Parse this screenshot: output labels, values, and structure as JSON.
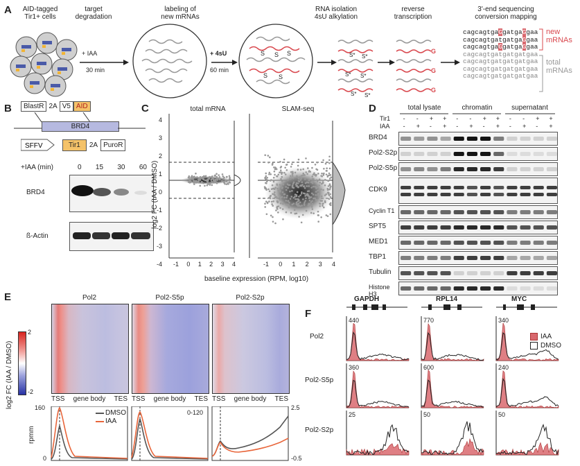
{
  "panels": {
    "A": {
      "label": "A",
      "steps": [
        {
          "title": "AID-tagged\nTir1+ cells"
        },
        {
          "title": "target\ndegradation"
        },
        {
          "title": "labeling of\nnew mRNAs"
        },
        {
          "title": "RNA isolation\n4sU alkylation"
        },
        {
          "title": "reverse\ntranscription"
        },
        {
          "title": "3'-end sequencing\nconversion mapping"
        }
      ],
      "arrow1_top": "+ IAA",
      "arrow1_bottom": "30 min",
      "arrow2_top": "+ 4sU",
      "arrow2_bottom": "60 min",
      "sequences": [
        "cagcagtgaGgatgaGgaa",
        "cagcagtgatgatgaGgaa",
        "cagcagtgaGgatgaGgaa",
        "cagcagtgatgatgatgaa",
        "cagcagtgatgatgatgaa",
        "cagcagtgatgatgatgaa",
        "cagcagtgatgatgatgaa"
      ],
      "new_label": "new\nmRNAs",
      "total_label": "total\nmRNAs"
    },
    "B": {
      "label": "B",
      "construct1": [
        "BlastR",
        "2A",
        "V5",
        "AID"
      ],
      "gene": "BRD4",
      "construct2": [
        "SFFV",
        "Tir1",
        "2A",
        "PuroR"
      ],
      "iaa_header": "+IAA (min)",
      "timepoints": [
        "0",
        "15",
        "30",
        "60"
      ],
      "rows": [
        "BRD4",
        "ß-Actin"
      ]
    },
    "C": {
      "label": "C",
      "titles": [
        "total mRNA",
        "SLAM-seq"
      ],
      "ylabel": "log2 FC (IAA / DMSO)",
      "xlabel": "baseline expression (RPM, log10)",
      "yticks": [
        "4",
        "3",
        "2",
        "1",
        "0",
        "-1",
        "-2",
        "-3",
        "-4"
      ],
      "xticks": [
        "-1",
        "0",
        "1",
        "2",
        "3",
        "4"
      ]
    },
    "D": {
      "label": "D",
      "groups": [
        "total lysate",
        "chromatin",
        "supernatant"
      ],
      "tir1_label": "Tir1",
      "iaa_label": "IAA",
      "tir1_signs": [
        "-",
        "-",
        "+",
        "+"
      ],
      "iaa_signs": [
        "-",
        "+",
        "-",
        "+"
      ],
      "rows": [
        "BRD4",
        "Pol2-S2p",
        "Pol2-S5p",
        "CDK9",
        "Cyclin T1",
        "SPT5",
        "MED1",
        "TBP1",
        "Tubulin",
        "Histone H3"
      ]
    },
    "E": {
      "label": "E",
      "titles": [
        "Pol2",
        "Pol2-S5p",
        "Pol2-S2p"
      ],
      "scale_ylabel": "log2 FC (IAA / DMSO)",
      "scale_max": "2",
      "scale_min": "-2",
      "xlabels": [
        "TSS",
        "gene body",
        "TES"
      ],
      "ylabel": "rpmm",
      "ymax": "160",
      "ymin": "0",
      "mid_range": "0-120",
      "right_max": "2.5",
      "right_min": "-0.5",
      "legend": [
        {
          "name": "DMSO",
          "color": "#555555"
        },
        {
          "name": "IAA",
          "color": "#e8653a"
        }
      ]
    },
    "F": {
      "label": "F",
      "genes": [
        "GAPDH",
        "RPL14",
        "MYC"
      ],
      "rows": [
        "Pol2",
        "Pol2-S5p",
        "Pol2-S2p"
      ],
      "scales": [
        [
          "440",
          "770",
          "340"
        ],
        [
          "360",
          "600",
          "240"
        ],
        [
          "25",
          "50",
          "50"
        ]
      ],
      "legend": [
        {
          "name": "IAA",
          "color": "#d9686e"
        },
        {
          "name": "DMSO",
          "color": "#222222"
        }
      ]
    }
  }
}
